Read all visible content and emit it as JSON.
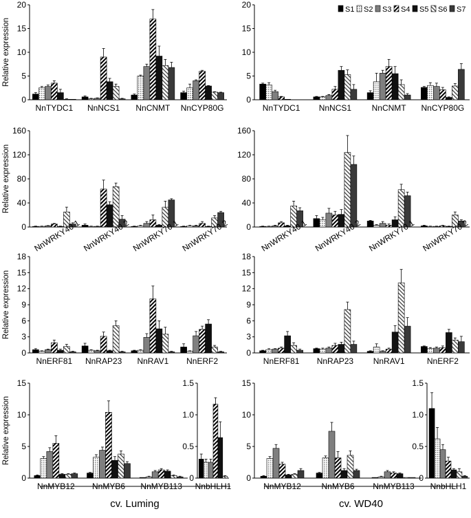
{
  "legend": {
    "labels": [
      "S1",
      "S2",
      "S3",
      "S4",
      "S5",
      "S6",
      "S7"
    ]
  },
  "footer": {
    "left": "cv. Luming",
    "right": "cv. WD40"
  },
  "series_style": [
    {
      "name": "S1",
      "fill": "#000000",
      "pattern": "solid"
    },
    {
      "name": "S2",
      "fill": "#d9d9d9",
      "pattern": "dots"
    },
    {
      "name": "S3",
      "fill": "#7f7f7f",
      "pattern": "solid"
    },
    {
      "name": "S4",
      "fill": "#ffffff",
      "pattern": "diag-dense"
    },
    {
      "name": "S5",
      "fill": "#111111",
      "pattern": "solid"
    },
    {
      "name": "S6",
      "fill": "#ffffff",
      "pattern": "diag-light"
    },
    {
      "name": "S7",
      "fill": "#3a3a3a",
      "pattern": "solid"
    }
  ],
  "chart_data": [
    {
      "type": "bar",
      "ylabel": "Relative expression",
      "ylim": [
        0,
        20
      ],
      "yticks": [
        0,
        5,
        10,
        15,
        20
      ],
      "categories": [
        "NnTYDC1",
        "NnNCS1",
        "NnCNMT",
        "NnCYP80G"
      ],
      "series": [
        {
          "name": "S1",
          "values": [
            1.2,
            0.6,
            1.0,
            1.5
          ],
          "errors": [
            0.3,
            0.2,
            0.2,
            0.3
          ]
        },
        {
          "name": "S2",
          "values": [
            2.5,
            0.2,
            5.0,
            2.5
          ],
          "errors": [
            0.3,
            0.1,
            0.2,
            0.8
          ]
        },
        {
          "name": "S3",
          "values": [
            2.8,
            0.3,
            7.0,
            4.0
          ],
          "errors": [
            0.3,
            0.1,
            0.5,
            0.2
          ]
        },
        {
          "name": "S4",
          "values": [
            3.5,
            9.0,
            17.0,
            6.0
          ],
          "errors": [
            0.5,
            1.8,
            2.0,
            0.2
          ]
        },
        {
          "name": "S5",
          "values": [
            1.5,
            3.8,
            9.2,
            2.9
          ],
          "errors": [
            0.7,
            0.7,
            2.1,
            0.1
          ]
        },
        {
          "name": "S6",
          "values": [
            0.1,
            2.8,
            7.2,
            1.6
          ],
          "errors": [
            0.1,
            0.5,
            1.3,
            0.1
          ]
        },
        {
          "name": "S7",
          "values": [
            0.1,
            0.2,
            6.8,
            1.5
          ],
          "errors": [
            0.0,
            0.1,
            1.1,
            0.1
          ]
        }
      ]
    },
    {
      "type": "bar",
      "ylabel": "",
      "ylim": [
        0,
        20
      ],
      "yticks": [
        0,
        5,
        10,
        15,
        20
      ],
      "categories": [
        "NnTYDC1",
        "NnNCS1",
        "NnCNMT",
        "NnCYP80G"
      ],
      "series": [
        {
          "name": "S1",
          "values": [
            3.3,
            0.6,
            1.5,
            2.6
          ],
          "errors": [
            0.2,
            0.1,
            0.4,
            0.2
          ]
        },
        {
          "name": "S2",
          "values": [
            3.1,
            0.6,
            3.8,
            3.0
          ],
          "errors": [
            0.5,
            0.1,
            1.8,
            0.6
          ]
        },
        {
          "name": "S3",
          "values": [
            1.7,
            0.9,
            5.6,
            2.8
          ],
          "errors": [
            0.3,
            0.2,
            0.6,
            0.7
          ]
        },
        {
          "name": "S4",
          "values": [
            0.6,
            2.2,
            7.0,
            2.1
          ],
          "errors": [
            0.1,
            0.6,
            1.5,
            0.5
          ]
        },
        {
          "name": "S5",
          "values": [
            0.1,
            6.2,
            5.5,
            0.5
          ],
          "errors": [
            0.0,
            0.8,
            1.5,
            0.1
          ]
        },
        {
          "name": "S6",
          "values": [
            0.0,
            5.3,
            3.2,
            2.9
          ],
          "errors": [
            0.0,
            1.0,
            1.0,
            0.5
          ]
        },
        {
          "name": "S7",
          "values": [
            0.0,
            2.2,
            1.0,
            6.4
          ],
          "errors": [
            0.0,
            1.0,
            0.3,
            1.2
          ]
        }
      ]
    },
    {
      "type": "bar",
      "ylabel": "Relative expression",
      "ylim": [
        0,
        160
      ],
      "yticks": [
        0,
        40,
        80,
        120,
        160
      ],
      "categories": [
        "NnWRKY40 1",
        "NnWRKY40 2",
        "NnWRKY70 1",
        "NnWRKY70 2"
      ],
      "series": [
        {
          "name": "S1",
          "values": [
            1,
            3,
            1,
            1
          ],
          "errors": [
            0.5,
            2,
            0.5,
            0.5
          ]
        },
        {
          "name": "S2",
          "values": [
            1,
            1,
            2,
            2
          ],
          "errors": [
            0.5,
            0.5,
            1,
            1
          ]
        },
        {
          "name": "S3",
          "values": [
            2,
            1,
            6,
            2
          ],
          "errors": [
            0.5,
            0.5,
            3,
            1
          ]
        },
        {
          "name": "S4",
          "values": [
            5,
            63,
            12,
            6
          ],
          "errors": [
            1,
            15,
            8,
            3
          ]
        },
        {
          "name": "S5",
          "values": [
            1,
            37,
            3,
            1
          ],
          "errors": [
            0.5,
            5,
            1,
            0.5
          ]
        },
        {
          "name": "S6",
          "values": [
            25,
            67,
            33,
            15
          ],
          "errors": [
            8,
            6,
            10,
            4
          ]
        },
        {
          "name": "S7",
          "values": [
            5,
            13,
            45,
            24
          ],
          "errors": [
            2,
            6,
            2,
            2
          ]
        }
      ]
    },
    {
      "type": "bar",
      "ylabel": "",
      "ylim": [
        0,
        160
      ],
      "yticks": [
        0,
        40,
        80,
        120,
        160
      ],
      "categories": [
        "NnWRKY40 1",
        "NnWRKY40 2",
        "NnWRKY70 1",
        "NnWRKY70 2"
      ],
      "series": [
        {
          "name": "S1",
          "values": [
            1,
            14,
            10,
            2
          ],
          "errors": [
            0.5,
            5,
            1,
            1
          ]
        },
        {
          "name": "S2",
          "values": [
            1,
            12,
            3,
            1
          ],
          "errors": [
            0.5,
            4,
            1,
            0.5
          ]
        },
        {
          "name": "S3",
          "values": [
            2,
            23,
            6,
            1
          ],
          "errors": [
            1,
            8,
            3,
            0.5
          ]
        },
        {
          "name": "S4",
          "values": [
            7,
            20,
            3,
            2
          ],
          "errors": [
            2,
            6,
            2,
            1
          ]
        },
        {
          "name": "S5",
          "values": [
            2,
            21,
            12,
            1
          ],
          "errors": [
            1,
            8,
            5,
            0.5
          ]
        },
        {
          "name": "S6",
          "values": [
            35,
            124,
            62,
            20
          ],
          "errors": [
            8,
            28,
            9,
            5
          ]
        },
        {
          "name": "S7",
          "values": [
            27,
            104,
            52,
            10
          ],
          "errors": [
            5,
            14,
            6,
            2
          ]
        }
      ]
    },
    {
      "type": "bar",
      "ylabel": "Relative expression",
      "ylim": [
        0,
        18
      ],
      "yticks": [
        0,
        3,
        6,
        9,
        12,
        15,
        18
      ],
      "categories": [
        "NnERF81",
        "NnRAP23",
        "NnRAV1",
        "NnERF2"
      ],
      "series": [
        {
          "name": "S1",
          "values": [
            0.6,
            1.3,
            0.4,
            1.1
          ],
          "errors": [
            0.2,
            0.5,
            0.1,
            0.6
          ]
        },
        {
          "name": "S2",
          "values": [
            0.3,
            0.5,
            0.5,
            0.3
          ],
          "errors": [
            0.1,
            0.1,
            0.1,
            0.1
          ]
        },
        {
          "name": "S3",
          "values": [
            0.6,
            0.4,
            2.9,
            3.2
          ],
          "errors": [
            0.1,
            0.1,
            0.7,
            0.8
          ]
        },
        {
          "name": "S4",
          "values": [
            1.9,
            3.1,
            10.1,
            4.4
          ],
          "errors": [
            0.5,
            0.8,
            2.4,
            0.6
          ]
        },
        {
          "name": "S5",
          "values": [
            0.5,
            0.4,
            4.5,
            5.4
          ],
          "errors": [
            0.2,
            0.1,
            1.5,
            0.8
          ]
        },
        {
          "name": "S6",
          "values": [
            1.2,
            5.1,
            3.5,
            1.1
          ],
          "errors": [
            0.4,
            0.9,
            1.3,
            0.3
          ]
        },
        {
          "name": "S7",
          "values": [
            0.2,
            0.2,
            0.2,
            0.2
          ],
          "errors": [
            0.1,
            0.1,
            0.1,
            0.1
          ]
        }
      ]
    },
    {
      "type": "bar",
      "ylabel": "",
      "ylim": [
        0,
        18
      ],
      "yticks": [
        0,
        3,
        6,
        9,
        12,
        15,
        18
      ],
      "categories": [
        "NnERF81",
        "NnRAP23",
        "NnRAV1",
        "NnERF2"
      ],
      "series": [
        {
          "name": "S1",
          "values": [
            0.4,
            0.8,
            0.3,
            1.2
          ],
          "errors": [
            0.1,
            0.1,
            0.1,
            0.1
          ]
        },
        {
          "name": "S2",
          "values": [
            0.6,
            0.7,
            1.1,
            0.8
          ],
          "errors": [
            0.2,
            0.2,
            0.6,
            0.2
          ]
        },
        {
          "name": "S3",
          "values": [
            0.7,
            0.9,
            0.3,
            0.9
          ],
          "errors": [
            0.1,
            0.2,
            0.1,
            0.2
          ]
        },
        {
          "name": "S4",
          "values": [
            0.9,
            1.4,
            0.7,
            1.0
          ],
          "errors": [
            0.2,
            0.4,
            0.2,
            0.3
          ]
        },
        {
          "name": "S5",
          "values": [
            3.2,
            1.6,
            3.9,
            3.8
          ],
          "errors": [
            0.8,
            0.4,
            1.2,
            0.6
          ]
        },
        {
          "name": "S6",
          "values": [
            1.4,
            8.1,
            13.1,
            2.4
          ],
          "errors": [
            0.5,
            1.4,
            2.5,
            0.4
          ]
        },
        {
          "name": "S7",
          "values": [
            0.5,
            1.6,
            5.0,
            2.1
          ],
          "errors": [
            0.2,
            0.6,
            1.6,
            1.0
          ]
        }
      ]
    },
    {
      "type": "bar",
      "ylabel": "Relative expression",
      "ylim": [
        0,
        15
      ],
      "yticks": [
        0,
        5,
        10,
        15
      ],
      "categories": [
        "NnMYB12",
        "NnMYB6",
        "NnMYB113"
      ],
      "series": [
        {
          "name": "S1",
          "values": [
            0.4,
            0.8,
            0.1
          ],
          "errors": [
            0.1,
            0.1,
            0.0
          ]
        },
        {
          "name": "S2",
          "values": [
            3.1,
            3.3,
            0.2
          ],
          "errors": [
            0.3,
            0.4,
            0.1
          ]
        },
        {
          "name": "S3",
          "values": [
            4.2,
            4.4,
            1.0
          ],
          "errors": [
            0.6,
            0.5,
            0.2
          ]
        },
        {
          "name": "S4",
          "values": [
            5.5,
            10.4,
            1.3
          ],
          "errors": [
            1.2,
            1.8,
            0.2
          ]
        },
        {
          "name": "S5",
          "values": [
            0.6,
            2.8,
            1.1
          ],
          "errors": [
            0.1,
            0.6,
            0.2
          ]
        },
        {
          "name": "S6",
          "values": [
            0.6,
            3.8,
            0.4
          ],
          "errors": [
            0.1,
            0.5,
            0.1
          ]
        },
        {
          "name": "S7",
          "values": [
            0.7,
            2.3,
            0.2
          ],
          "errors": [
            0.1,
            0.3,
            0.1
          ]
        }
      ]
    },
    {
      "type": "bar",
      "ylabel": "",
      "ylim": [
        0,
        1.5
      ],
      "yticks": [
        0,
        0.5,
        1.0,
        1.5
      ],
      "categories": [
        "NnbHLH1"
      ],
      "series": [
        {
          "name": "S1",
          "values": [
            0.3
          ],
          "errors": [
            0.08
          ]
        },
        {
          "name": "S2",
          "values": [
            0.25
          ],
          "errors": [
            0.05
          ]
        },
        {
          "name": "S3",
          "values": [
            0.25
          ],
          "errors": [
            0.05
          ]
        },
        {
          "name": "S4",
          "values": [
            1.17
          ],
          "errors": [
            0.1
          ]
        },
        {
          "name": "S5",
          "values": [
            0.64
          ],
          "errors": [
            0.25
          ]
        },
        {
          "name": "S6",
          "values": [
            0.03
          ],
          "errors": [
            0.01
          ]
        }
      ]
    },
    {
      "type": "bar",
      "ylabel": "",
      "ylim": [
        0,
        15
      ],
      "yticks": [
        0,
        5,
        10,
        15
      ],
      "categories": [
        "NnMYB12",
        "NnMYB6",
        "NnMYB113"
      ],
      "series": [
        {
          "name": "S1",
          "values": [
            0.3,
            0.8,
            0.1
          ],
          "errors": [
            0.1,
            0.1,
            0.0
          ]
        },
        {
          "name": "S2",
          "values": [
            3.1,
            3.2,
            0.2
          ],
          "errors": [
            0.3,
            0.3,
            0.1
          ]
        },
        {
          "name": "S3",
          "values": [
            4.7,
            7.4,
            1.0
          ],
          "errors": [
            0.6,
            1.4,
            0.2
          ]
        },
        {
          "name": "S4",
          "values": [
            2.2,
            3.2,
            0.8
          ],
          "errors": [
            0.3,
            1.0,
            0.2
          ]
        },
        {
          "name": "S5",
          "values": [
            0.5,
            1.2,
            0.7
          ],
          "errors": [
            0.1,
            0.3,
            0.1
          ]
        },
        {
          "name": "S6",
          "values": [
            0.6,
            3.6,
            0.1
          ],
          "errors": [
            0.1,
            0.7,
            0.0
          ]
        },
        {
          "name": "S7",
          "values": [
            1.2,
            1.2,
            0.1
          ],
          "errors": [
            0.3,
            0.2,
            0.0
          ]
        }
      ]
    },
    {
      "type": "bar",
      "ylabel": "",
      "ylim": [
        0,
        1.5
      ],
      "yticks": [
        0,
        0.5,
        1.0,
        1.5
      ],
      "categories": [
        "NnbHLH1"
      ],
      "series": [
        {
          "name": "S1",
          "values": [
            1.1
          ],
          "errors": [
            0.25
          ]
        },
        {
          "name": "S2",
          "values": [
            0.62
          ],
          "errors": [
            0.18
          ]
        },
        {
          "name": "S3",
          "values": [
            0.45
          ],
          "errors": [
            0.08
          ]
        },
        {
          "name": "S4",
          "values": [
            0.27
          ],
          "errors": [
            0.06
          ]
        },
        {
          "name": "S5",
          "values": [
            0.13
          ],
          "errors": [
            0.02
          ]
        },
        {
          "name": "S6",
          "values": [
            0.1
          ],
          "errors": [
            0.05
          ]
        },
        {
          "name": "S7",
          "values": [
            0.03
          ],
          "errors": [
            0.01
          ]
        }
      ]
    }
  ]
}
